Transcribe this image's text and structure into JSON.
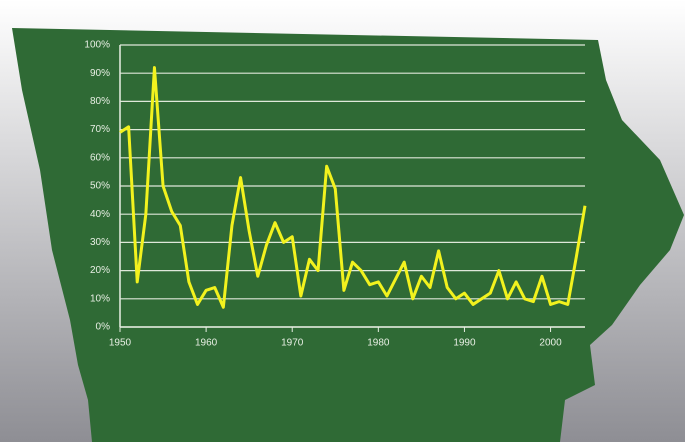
{
  "chart_data": {
    "type": "line",
    "x": [
      1950,
      1951,
      1952,
      1953,
      1954,
      1955,
      1956,
      1957,
      1958,
      1959,
      1960,
      1961,
      1962,
      1963,
      1964,
      1965,
      1966,
      1967,
      1968,
      1969,
      1970,
      1971,
      1972,
      1973,
      1974,
      1975,
      1976,
      1977,
      1978,
      1979,
      1980,
      1981,
      1982,
      1983,
      1984,
      1985,
      1986,
      1987,
      1988,
      1989,
      1990,
      1991,
      1992,
      1993,
      1994,
      1995,
      1996,
      1997,
      1998,
      1999,
      2000,
      2001,
      2002,
      2003,
      2004
    ],
    "series": [
      {
        "color": "#f2f21e",
        "values": [
          69,
          71,
          16,
          40,
          92,
          50,
          41,
          36,
          16,
          8,
          13,
          14,
          7,
          36,
          53,
          34,
          18,
          29,
          37,
          30,
          32,
          11,
          24,
          20,
          57,
          49,
          13,
          23,
          20,
          15,
          16,
          11,
          17,
          23,
          10,
          18,
          14,
          27,
          14,
          10,
          12,
          8,
          10,
          12,
          20,
          10,
          16,
          10,
          9,
          18,
          8,
          9,
          8,
          25,
          43
        ]
      }
    ],
    "xlim": [
      1950,
      2004
    ],
    "xticks": [
      1950,
      1960,
      1970,
      1980,
      1990,
      2000
    ],
    "ylim": [
      0,
      100
    ],
    "yticks": [
      {
        "value": 0,
        "label": "0%"
      },
      {
        "value": 10,
        "label": "10%"
      },
      {
        "value": 20,
        "label": "20%"
      },
      {
        "value": 30,
        "label": "30%"
      },
      {
        "value": 40,
        "label": "40%"
      },
      {
        "value": 50,
        "label": "50%"
      },
      {
        "value": 60,
        "label": "60%"
      },
      {
        "value": 70,
        "label": "70%"
      },
      {
        "value": 80,
        "label": "80%"
      },
      {
        "value": 90,
        "label": "90%"
      },
      {
        "value": 100,
        "label": "100%"
      }
    ],
    "grid": true
  }
}
